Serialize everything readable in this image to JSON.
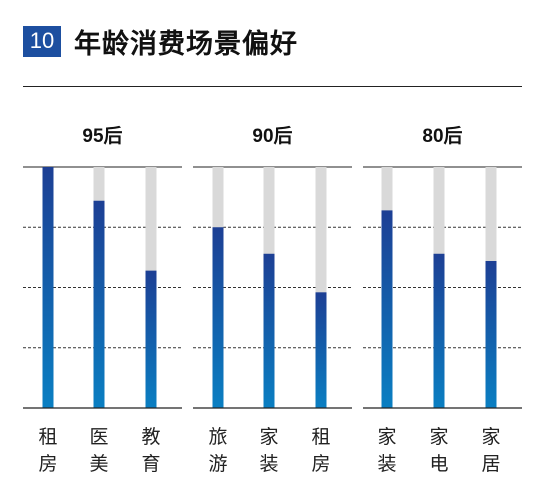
{
  "header": {
    "number": "10",
    "title": "年龄消费场景偏好"
  },
  "chart_data": {
    "type": "bar",
    "title": "年龄消费场景偏好",
    "ylim": [
      0,
      100
    ],
    "grid": true,
    "groups": [
      {
        "name": "95后",
        "categories": [
          "租房",
          "医美",
          "教育"
        ],
        "values": [
          100,
          86,
          57
        ]
      },
      {
        "name": "90后",
        "categories": [
          "旅游",
          "家装",
          "租房"
        ],
        "values": [
          75,
          64,
          48
        ]
      },
      {
        "name": "80后",
        "categories": [
          "家装",
          "家电",
          "家居"
        ],
        "values": [
          82,
          64,
          61
        ]
      }
    ],
    "colors": {
      "bar_top": "#1d3f94",
      "bar_bottom": "#0a7fc2",
      "track": "#d9d9d9"
    }
  }
}
